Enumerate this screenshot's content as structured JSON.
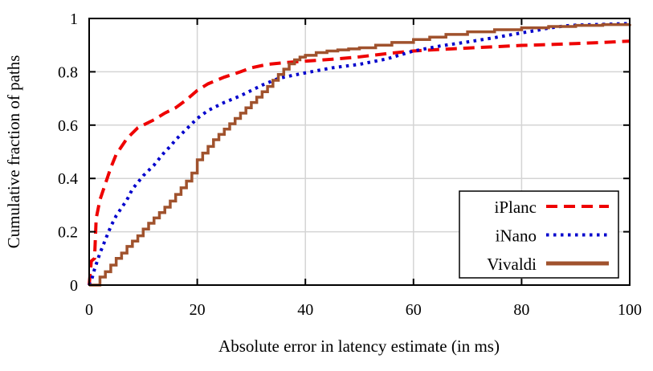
{
  "chart_data": {
    "type": "line",
    "title": "",
    "xlabel": "Absolute error in latency estimate (in ms)",
    "ylabel": "Cumulative fraction of paths",
    "xlim": [
      0,
      100
    ],
    "ylim": [
      0,
      1
    ],
    "x_ticks": [
      0,
      20,
      40,
      60,
      80,
      100
    ],
    "y_ticks": [
      0,
      0.2,
      0.4,
      0.6,
      0.8,
      1
    ],
    "x_tick_labels": [
      "0",
      "20",
      "40",
      "60",
      "80",
      "100"
    ],
    "y_tick_labels": [
      "0",
      "0.2",
      "0.4",
      "0.6",
      "0.8",
      "1"
    ],
    "grid": true,
    "grid_color": "#d4d4d4",
    "border_color": "#000000",
    "background_color": "#ffffff",
    "legend_position": "bottom-right",
    "series": [
      {
        "name": "iPlanc",
        "color": "#ee0000",
        "style": "dashed",
        "step": false,
        "points": [
          [
            0,
            0
          ],
          [
            0.4,
            0.09
          ],
          [
            1,
            0.1
          ],
          [
            1.3,
            0.25
          ],
          [
            2,
            0.32
          ],
          [
            3,
            0.38
          ],
          [
            4,
            0.44
          ],
          [
            5,
            0.49
          ],
          [
            6,
            0.52
          ],
          [
            7,
            0.55
          ],
          [
            8,
            0.57
          ],
          [
            9,
            0.59
          ],
          [
            10,
            0.6
          ],
          [
            12,
            0.62
          ],
          [
            14,
            0.645
          ],
          [
            16,
            0.665
          ],
          [
            18,
            0.695
          ],
          [
            20,
            0.73
          ],
          [
            22,
            0.755
          ],
          [
            25,
            0.78
          ],
          [
            28,
            0.8
          ],
          [
            30,
            0.815
          ],
          [
            33,
            0.828
          ],
          [
            36,
            0.834
          ],
          [
            40,
            0.84
          ],
          [
            45,
            0.847
          ],
          [
            50,
            0.856
          ],
          [
            55,
            0.868
          ],
          [
            60,
            0.878
          ],
          [
            65,
            0.884
          ],
          [
            70,
            0.889
          ],
          [
            75,
            0.894
          ],
          [
            80,
            0.899
          ],
          [
            85,
            0.902
          ],
          [
            90,
            0.906
          ],
          [
            95,
            0.91
          ],
          [
            100,
            0.915
          ]
        ]
      },
      {
        "name": "iNano",
        "color": "#0000cc",
        "style": "dotted",
        "step": false,
        "points": [
          [
            0,
            0
          ],
          [
            0.6,
            0.03
          ],
          [
            1,
            0.06
          ],
          [
            2,
            0.12
          ],
          [
            3,
            0.17
          ],
          [
            4,
            0.22
          ],
          [
            5,
            0.26
          ],
          [
            6,
            0.29
          ],
          [
            7,
            0.32
          ],
          [
            8,
            0.36
          ],
          [
            9,
            0.385
          ],
          [
            10,
            0.41
          ],
          [
            11,
            0.43
          ],
          [
            12,
            0.45
          ],
          [
            13,
            0.475
          ],
          [
            14,
            0.5
          ],
          [
            15,
            0.52
          ],
          [
            16,
            0.545
          ],
          [
            17,
            0.565
          ],
          [
            18,
            0.585
          ],
          [
            19,
            0.605
          ],
          [
            20,
            0.625
          ],
          [
            22,
            0.655
          ],
          [
            25,
            0.685
          ],
          [
            28,
            0.71
          ],
          [
            30,
            0.73
          ],
          [
            32,
            0.75
          ],
          [
            35,
            0.775
          ],
          [
            38,
            0.788
          ],
          [
            40,
            0.796
          ],
          [
            45,
            0.815
          ],
          [
            50,
            0.828
          ],
          [
            55,
            0.848
          ],
          [
            60,
            0.878
          ],
          [
            65,
            0.897
          ],
          [
            70,
            0.912
          ],
          [
            75,
            0.928
          ],
          [
            80,
            0.946
          ],
          [
            83,
            0.956
          ],
          [
            85,
            0.964
          ],
          [
            88,
            0.972
          ],
          [
            90,
            0.975
          ],
          [
            95,
            0.978
          ],
          [
            100,
            0.981
          ]
        ]
      },
      {
        "name": "Vivaldi",
        "color": "#a0522d",
        "style": "solid",
        "step": true,
        "points": [
          [
            0,
            0
          ],
          [
            1.3,
            0
          ],
          [
            2,
            0.03
          ],
          [
            3,
            0.05
          ],
          [
            4,
            0.075
          ],
          [
            5,
            0.1
          ],
          [
            6,
            0.12
          ],
          [
            7,
            0.145
          ],
          [
            8,
            0.165
          ],
          [
            9,
            0.185
          ],
          [
            10,
            0.21
          ],
          [
            11,
            0.232
          ],
          [
            12,
            0.252
          ],
          [
            13,
            0.272
          ],
          [
            14,
            0.292
          ],
          [
            15,
            0.315
          ],
          [
            16,
            0.34
          ],
          [
            17,
            0.365
          ],
          [
            18,
            0.39
          ],
          [
            19,
            0.42
          ],
          [
            20,
            0.47
          ],
          [
            21,
            0.495
          ],
          [
            22,
            0.52
          ],
          [
            23,
            0.545
          ],
          [
            24,
            0.565
          ],
          [
            25,
            0.585
          ],
          [
            26,
            0.605
          ],
          [
            27,
            0.625
          ],
          [
            28,
            0.645
          ],
          [
            29,
            0.665
          ],
          [
            30,
            0.685
          ],
          [
            31,
            0.705
          ],
          [
            32,
            0.725
          ],
          [
            33,
            0.745
          ],
          [
            34,
            0.768
          ],
          [
            35,
            0.79
          ],
          [
            36,
            0.81
          ],
          [
            37,
            0.83
          ],
          [
            38,
            0.845
          ],
          [
            39,
            0.855
          ],
          [
            40,
            0.862
          ],
          [
            42,
            0.872
          ],
          [
            44,
            0.878
          ],
          [
            46,
            0.882
          ],
          [
            48,
            0.886
          ],
          [
            50,
            0.89
          ],
          [
            53,
            0.9
          ],
          [
            56,
            0.91
          ],
          [
            60,
            0.921
          ],
          [
            63,
            0.93
          ],
          [
            66,
            0.94
          ],
          [
            70,
            0.95
          ],
          [
            75,
            0.958
          ],
          [
            80,
            0.965
          ],
          [
            85,
            0.97
          ],
          [
            90,
            0.974
          ],
          [
            95,
            0.977
          ],
          [
            100,
            0.979
          ]
        ]
      }
    ]
  }
}
